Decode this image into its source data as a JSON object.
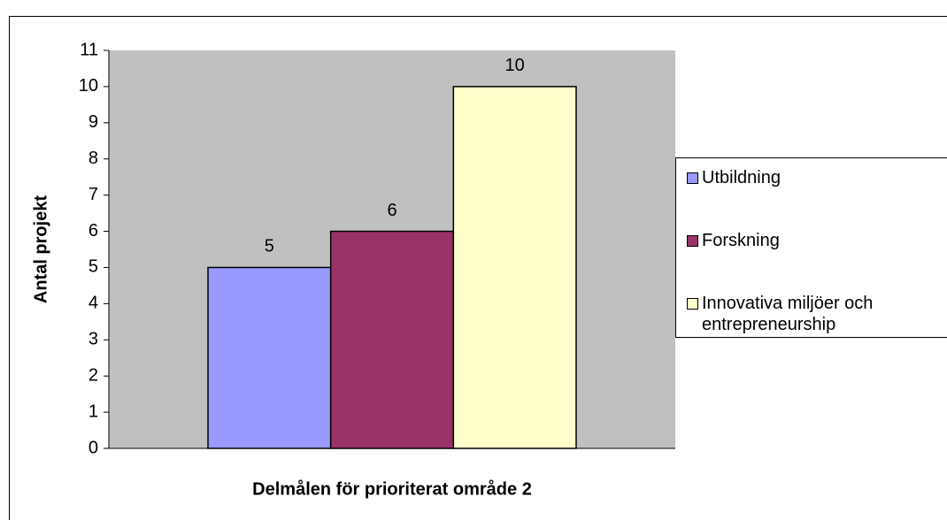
{
  "chart_data": {
    "type": "bar",
    "y_label": "Antal projekt",
    "x_label": "Delmålen för prioriterat område 2",
    "categories": [
      null
    ],
    "series": [
      {
        "name": "Utbildning",
        "color": "#9999ff",
        "values": [
          5
        ]
      },
      {
        "name": "Forskning",
        "color": "#993366",
        "values": [
          6
        ]
      },
      {
        "name": "Innovativa miljöer och entrepreneurship",
        "color": "#ffffcc",
        "values": [
          10
        ]
      }
    ],
    "ylim": [
      0,
      11
    ],
    "yticks": [
      0,
      1,
      2,
      3,
      4,
      5,
      6,
      7,
      8,
      9,
      10,
      11
    ],
    "plot_background": "#c0c0c0",
    "legend": "right"
  }
}
